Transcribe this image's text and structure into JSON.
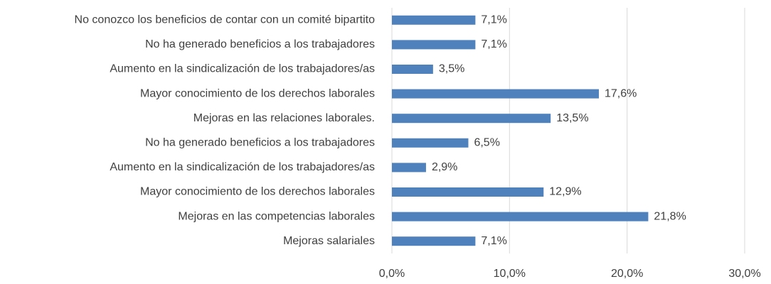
{
  "chart_data": {
    "type": "bar",
    "orientation": "horizontal",
    "categories": [
      "No conozco los beneficios de contar con un comité bipartito",
      "No ha generado beneficios a los trabajadores",
      "Aumento en la sindicalización de los trabajadores/as",
      "Mayor conocimiento de los derechos laborales",
      "Mejoras en las relaciones laborales.",
      "No ha generado beneficios a los trabajadores",
      "Aumento en la sindicalización de los trabajadores/as",
      "Mayor conocimiento de los derechos laborales",
      "Mejoras en las competencias laborales",
      "Mejoras salariales"
    ],
    "values": [
      7.1,
      7.1,
      3.5,
      17.6,
      13.5,
      6.5,
      2.9,
      12.9,
      21.8,
      7.1
    ],
    "value_labels": [
      "7,1%",
      "7,1%",
      "3,5%",
      "17,6%",
      "13,5%",
      "6,5%",
      "2,9%",
      "12,9%",
      "21,8%",
      "7,1%"
    ],
    "color": "#4f81bd",
    "xlim": [
      0,
      30
    ],
    "xticks": [
      {
        "value": 0,
        "label": "0,0%"
      },
      {
        "value": 10,
        "label": "10,0%"
      },
      {
        "value": 20,
        "label": "20,0%"
      },
      {
        "value": 30,
        "label": "30,0%"
      }
    ],
    "grid": true
  }
}
